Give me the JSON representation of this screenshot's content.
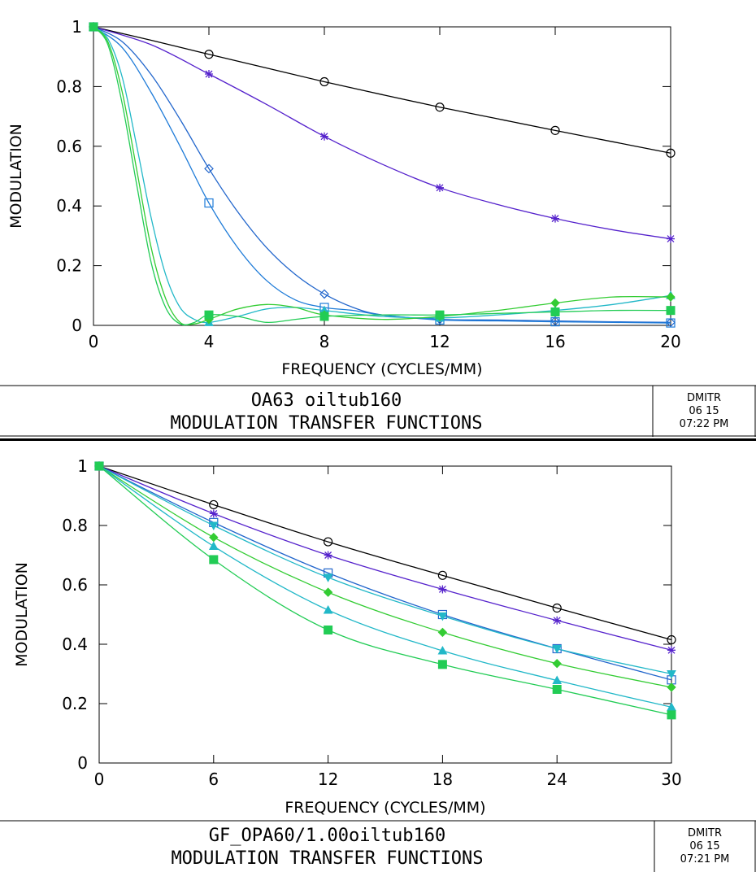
{
  "chart_data": [
    {
      "type": "line",
      "xlabel": "FREQUENCY (CYCLES/MM)",
      "ylabel": "MODULATION",
      "xlim": [
        0,
        20
      ],
      "ylim": [
        0,
        1
      ],
      "xticks": [
        0,
        4,
        8,
        12,
        16,
        20
      ],
      "yticks": [
        0,
        0.2,
        0.4,
        0.6,
        0.8,
        1
      ],
      "xtick_labels": [
        "0",
        "4",
        "8",
        "12",
        "16",
        "20"
      ],
      "ytick_labels": [
        "0",
        "0.2",
        "0.4",
        "0.6",
        "0.8",
        "1"
      ],
      "grid": false,
      "title_lines": [
        "OA63 oiltub160",
        "MODULATION TRANSFER FUNCTIONS"
      ],
      "stamp": [
        "DMITR",
        "06  15",
        "07:22 PM"
      ],
      "series": [
        {
          "color": "#000000",
          "marker": "circle",
          "x": [
            0,
            2,
            4,
            6,
            8,
            10,
            12,
            14,
            16,
            18,
            20
          ],
          "y": [
            1,
            0.955,
            0.908,
            0.862,
            0.816,
            0.773,
            0.731,
            0.692,
            0.653,
            0.615,
            0.577
          ]
        },
        {
          "color": "#5522cc",
          "marker": "asterisk",
          "x": [
            0,
            2,
            4,
            6,
            8,
            10,
            12,
            14,
            16,
            18,
            20
          ],
          "y": [
            1,
            0.94,
            0.842,
            0.74,
            0.633,
            0.54,
            0.461,
            0.405,
            0.358,
            0.32,
            0.29
          ]
        },
        {
          "color": "#2266cc",
          "marker": "diamond",
          "x": [
            0,
            1,
            2,
            3,
            4,
            5,
            6,
            7,
            8,
            9,
            10,
            12,
            14,
            16,
            18,
            20
          ],
          "y": [
            1,
            0.95,
            0.84,
            0.69,
            0.525,
            0.38,
            0.26,
            0.17,
            0.105,
            0.06,
            0.035,
            0.02,
            0.018,
            0.015,
            0.012,
            0.01
          ]
        },
        {
          "color": "#1e7bd8",
          "marker": "square-open",
          "x": [
            0,
            1,
            2,
            3,
            4,
            5,
            6,
            7,
            8,
            9,
            10,
            12,
            14,
            16,
            18,
            20
          ],
          "y": [
            1,
            0.93,
            0.78,
            0.6,
            0.41,
            0.26,
            0.15,
            0.085,
            0.06,
            0.05,
            0.035,
            0.018,
            0.015,
            0.012,
            0.01,
            0.008
          ]
        },
        {
          "color": "#22b8c8",
          "marker": "triangle",
          "x": [
            0,
            0.5,
            1,
            1.5,
            2,
            2.5,
            3,
            3.5,
            4,
            5,
            6,
            7,
            8,
            10,
            12,
            14,
            16,
            18,
            20
          ],
          "y": [
            1,
            0.96,
            0.83,
            0.6,
            0.36,
            0.17,
            0.06,
            0.02,
            0.01,
            0.03,
            0.055,
            0.06,
            0.05,
            0.03,
            0.025,
            0.035,
            0.05,
            0.07,
            0.1
          ]
        },
        {
          "color": "#33cc33",
          "marker": "diamond-filled",
          "x": [
            0,
            0.5,
            1,
            1.5,
            2,
            2.5,
            3,
            3.5,
            4,
            5,
            6,
            7,
            8,
            10,
            12,
            14,
            16,
            18,
            20
          ],
          "y": [
            1,
            0.95,
            0.78,
            0.52,
            0.26,
            0.09,
            0.01,
            0.005,
            0.02,
            0.055,
            0.07,
            0.06,
            0.035,
            0.02,
            0.03,
            0.05,
            0.075,
            0.095,
            0.095
          ]
        },
        {
          "color": "#22cc55",
          "marker": "square-filled",
          "x": [
            0,
            0.5,
            1,
            1.5,
            2,
            2.5,
            3,
            3.5,
            4,
            5,
            6,
            7,
            8,
            10,
            12,
            14,
            16,
            18,
            20
          ],
          "y": [
            1,
            0.94,
            0.74,
            0.47,
            0.21,
            0.06,
            0.005,
            0.01,
            0.035,
            0.03,
            0.01,
            0.02,
            0.03,
            0.035,
            0.035,
            0.04,
            0.045,
            0.05,
            0.05
          ]
        }
      ]
    },
    {
      "type": "line",
      "xlabel": "FREQUENCY (CYCLES/MM)",
      "ylabel": "MODULATION",
      "xlim": [
        0,
        30
      ],
      "ylim": [
        0,
        1
      ],
      "xticks": [
        0,
        6,
        12,
        18,
        24,
        30
      ],
      "yticks": [
        0,
        0.2,
        0.4,
        0.6,
        0.8,
        1
      ],
      "xtick_labels": [
        "0",
        "6",
        "12",
        "18",
        "24",
        "30"
      ],
      "ytick_labels": [
        "0",
        "0.2",
        "0.4",
        "0.6",
        "0.8",
        "1"
      ],
      "grid": false,
      "title_lines": [
        "GF_OPA60/1.00oiltub160",
        "MODULATION TRANSFER FUNCTIONS"
      ],
      "stamp": [
        "DMITR",
        "06  15",
        "07:21 PM"
      ],
      "series": [
        {
          "color": "#000000",
          "marker": "circle",
          "x": [
            0,
            6,
            12,
            18,
            24,
            30
          ],
          "y": [
            1,
            0.87,
            0.745,
            0.632,
            0.522,
            0.415
          ]
        },
        {
          "color": "#5522cc",
          "marker": "asterisk",
          "x": [
            0,
            6,
            12,
            18,
            24,
            30
          ],
          "y": [
            1,
            0.84,
            0.7,
            0.585,
            0.48,
            0.38
          ]
        },
        {
          "color": "#2266cc",
          "marker": "square-open",
          "x": [
            0,
            6,
            12,
            18,
            24,
            30
          ],
          "y": [
            1,
            0.81,
            0.64,
            0.5,
            0.385,
            0.28
          ]
        },
        {
          "color": "#22b8c8",
          "marker": "triangle-down",
          "x": [
            0,
            6,
            12,
            18,
            24,
            30
          ],
          "y": [
            1,
            0.8,
            0.625,
            0.495,
            0.385,
            0.3
          ]
        },
        {
          "color": "#33cc33",
          "marker": "diamond-filled",
          "x": [
            0,
            6,
            12,
            18,
            24,
            30
          ],
          "y": [
            1,
            0.76,
            0.575,
            0.44,
            0.335,
            0.255
          ]
        },
        {
          "color": "#22b8c8",
          "marker": "triangle",
          "x": [
            0,
            6,
            12,
            18,
            24,
            30
          ],
          "y": [
            1,
            0.73,
            0.515,
            0.378,
            0.278,
            0.188
          ]
        },
        {
          "color": "#22cc55",
          "marker": "square-filled",
          "x": [
            0,
            6,
            12,
            18,
            24,
            30
          ],
          "y": [
            1,
            0.685,
            0.448,
            0.332,
            0.248,
            0.162
          ]
        }
      ]
    }
  ]
}
